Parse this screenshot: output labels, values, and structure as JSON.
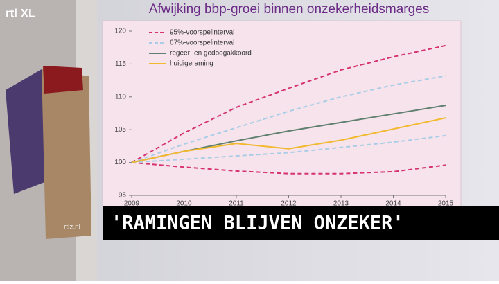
{
  "logo": "rtl XL",
  "watermark": "rtlz.nl",
  "caption": "'RAMINGEN BLIJVEN ONZEKER'",
  "chart_data": {
    "type": "line",
    "title": "Afwijking bbp-groei binnen onzekerheidsmarges",
    "x": [
      2009,
      2010,
      2011,
      2012,
      2013,
      2014,
      2015
    ],
    "xlim": [
      2009,
      2015
    ],
    "xticks": [
      2009,
      2010,
      2011,
      2012,
      2013,
      2014,
      2015
    ],
    "ylim": [
      95,
      120
    ],
    "yticks": [
      95,
      100,
      105,
      110,
      115,
      120
    ],
    "legend": "upper-left",
    "series": [
      {
        "name": "95%-voorspelinterval",
        "color": "#d6336e",
        "dashed": true,
        "values": [
          100,
          104.5,
          108.4,
          111.3,
          114.1,
          116.1,
          117.8
        ],
        "lower": [
          100,
          99.3,
          98.7,
          98.3,
          98.3,
          98.6,
          99.6
        ]
      },
      {
        "name": "67%-voorspelinterval",
        "color": "#a9cde6",
        "dashed": true,
        "values": [
          100,
          102.8,
          105.3,
          107.8,
          110.0,
          111.8,
          113.2
        ],
        "lower": [
          100,
          100.5,
          101.0,
          101.5,
          102.3,
          103.1,
          104.1
        ]
      },
      {
        "name": "regeer- en gedoogakkoord",
        "color": "#5f7f6f",
        "dashed": false,
        "values": [
          100,
          101.7,
          103.3,
          104.8,
          106.1,
          107.4,
          108.7
        ]
      },
      {
        "name": "huidigeraming",
        "color": "#f2b92e",
        "dashed": false,
        "values": [
          100,
          101.7,
          102.9,
          102.1,
          103.4,
          105.1,
          106.8
        ]
      }
    ]
  }
}
